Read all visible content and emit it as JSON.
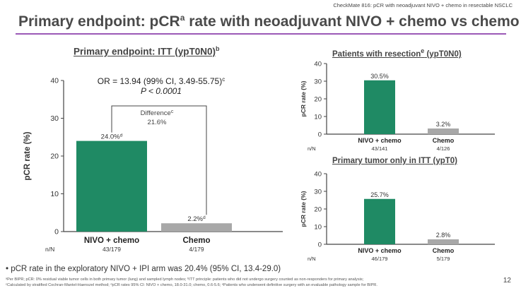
{
  "header": {
    "study_note": "CheckMate 816: pCR with neoadjuvant NIVO + chemo in resectable NSCLC",
    "title_main": "Primary endpoint: pCR",
    "title_sup": "a",
    "title_rest": " rate with neoadjuvant NIVO + chemo vs chemo",
    "accent_color": "#9b59b6"
  },
  "colors": {
    "nivo": "#1f8a64",
    "chemo": "#a8a8a8"
  },
  "chart_data": [
    {
      "type": "bar",
      "title": "Primary endpoint: ITT (ypT0N0)",
      "title_sup": "b",
      "ylabel": "pCR rate (%)",
      "ylim": [
        0,
        40
      ],
      "yticks": [
        "0",
        "10",
        "20",
        "30",
        "40"
      ],
      "categories": [
        "NIVO + chemo",
        "Chemo"
      ],
      "values": [
        24.0,
        2.2
      ],
      "value_labels": [
        "24.0%",
        "2.2%"
      ],
      "value_sup": [
        "d",
        "d"
      ],
      "nn_label": "n/N",
      "nn": [
        "43/179",
        "4/179"
      ],
      "or_text": "OR = 13.94 (99% CI, 3.49-55.75)",
      "or_sup": "c",
      "p_text": "P < 0.0001",
      "diff_label": "Difference",
      "diff_sup": "c",
      "diff_value": "21.6%"
    },
    {
      "type": "bar",
      "title": "Patients with resection",
      "title_sup": "e",
      "title_rest": " (ypT0N0)",
      "ylabel": "pCR rate (%)",
      "ylim": [
        0,
        40
      ],
      "yticks": [
        "0",
        "10",
        "20",
        "30",
        "40"
      ],
      "categories": [
        "NIVO + chemo",
        "Chemo"
      ],
      "values": [
        30.5,
        3.2
      ],
      "value_labels": [
        "30.5%",
        "3.2%"
      ],
      "nn_label": "n/N",
      "nn": [
        "43/141",
        "4/126"
      ]
    },
    {
      "type": "bar",
      "title": "Primary tumor only in ITT (ypT0)",
      "ylabel": "pCR rate (%)",
      "ylim": [
        0,
        40
      ],
      "yticks": [
        "0",
        "10",
        "20",
        "30",
        "40"
      ],
      "categories": [
        "NIVO + chemo",
        "Chemo"
      ],
      "values": [
        25.7,
        2.8
      ],
      "value_labels": [
        "25.7%",
        "2.8%"
      ],
      "nn_label": "n/N",
      "nn": [
        "46/179",
        "5/179"
      ]
    }
  ],
  "bullet": "pCR rate in the exploratory NIVO + IPI arm was 20.4% (95% CI, 13.4-29.0)",
  "footnotes": [
    "ᵃPer BIPR; pCR: 0% residual viable tumor cells in both primary tumor (lung) and sampled lymph nodes; ᵇITT principle: patients who did not undergo surgery counted as non-responders for primary analysis;",
    "ᶜCalculated by stratified Cochran-Mantel-Haenszel method; ᵈpCR rates 95% CI: NIVO + chemo, 18.0-31.0; chemo, 0.6-5.6; ᵉPatients who underwent definitive surgery with an evaluable pathology sample for BIPR."
  ],
  "page_number": "12"
}
